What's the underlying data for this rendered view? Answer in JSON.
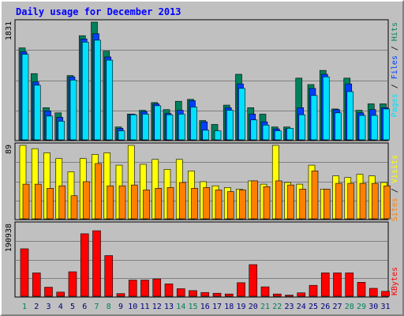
{
  "chart_data": {
    "type": "bar",
    "title": "Daily usage for December 2013",
    "categories": [
      "1",
      "2",
      "3",
      "4",
      "5",
      "6",
      "7",
      "8",
      "9",
      "10",
      "11",
      "12",
      "13",
      "14",
      "15",
      "16",
      "17",
      "18",
      "19",
      "20",
      "21",
      "22",
      "23",
      "24",
      "25",
      "26",
      "27",
      "28",
      "29",
      "30",
      "31"
    ],
    "weekend_days": [
      "1",
      "7",
      "8",
      "14",
      "15",
      "21",
      "22",
      "28",
      "29"
    ],
    "axis_labels": {
      "hits_max": "1831",
      "visits_max": "89",
      "kbytes_max": "190938"
    },
    "legend_right": {
      "top": [
        "Pages",
        " / ",
        "Files",
        " / ",
        "Hits"
      ],
      "middle": [
        "Sites",
        " / ",
        "Visits"
      ],
      "bottom": [
        "KBytes"
      ]
    },
    "colors": {
      "hits": "#00805c",
      "files": "#0040ff",
      "pages": "#00e0ff",
      "visits": "#ffff00",
      "sites": "#ff8000",
      "kbytes": "#ff0000",
      "title": "#0000ff",
      "weekend": "#00805c",
      "weekday": "#000080",
      "background": "#c0c0c0"
    },
    "hits_ylim": [
      0,
      1831
    ],
    "visits_ylim": [
      0,
      89
    ],
    "kbytes_ylim": [
      0,
      190938
    ],
    "series": [
      {
        "name": "Hits",
        "values": [
          1430,
          1030,
          500,
          420,
          1000,
          1620,
          1831,
          1380,
          200,
          400,
          460,
          580,
          470,
          600,
          630,
          300,
          240,
          540,
          1020,
          500,
          400,
          200,
          200,
          960,
          860,
          1080,
          480,
          960,
          460,
          560,
          560
        ]
      },
      {
        "name": "Files",
        "values": [
          1370,
          900,
          450,
          350,
          980,
          1570,
          1650,
          1290,
          180,
          400,
          440,
          560,
          410,
          460,
          610,
          280,
          0,
          500,
          870,
          400,
          280,
          170,
          170,
          500,
          800,
          1020,
          470,
          870,
          420,
          470,
          500
        ]
      },
      {
        "name": "Pages",
        "values": [
          1330,
          850,
          370,
          290,
          930,
          1520,
          1550,
          1240,
          140,
          390,
          400,
          530,
          390,
          400,
          510,
          150,
          140,
          460,
          800,
          310,
          230,
          140,
          180,
          390,
          690,
          980,
          420,
          750,
          380,
          380,
          480
        ]
      },
      {
        "name": "Visits",
        "values": [
          89,
          85,
          80,
          73,
          57,
          73,
          78,
          80,
          65,
          89,
          66,
          72,
          60,
          72,
          58,
          45,
          40,
          38,
          36,
          46,
          42,
          89,
          44,
          42,
          65,
          36,
          52,
          50,
          54,
          52,
          44
        ]
      },
      {
        "name": "Sites",
        "values": [
          42,
          42,
          37,
          40,
          28,
          45,
          67,
          40,
          40,
          41,
          35,
          37,
          38,
          44,
          37,
          38,
          35,
          33,
          35,
          46,
          39,
          46,
          41,
          36,
          58,
          36,
          43,
          43,
          43,
          43,
          40
        ]
      },
      {
        "name": "KBytes",
        "values": [
          126000,
          62000,
          24000,
          11000,
          65000,
          166000,
          174000,
          108000,
          7000,
          43000,
          43000,
          46000,
          33000,
          20000,
          15000,
          10000,
          8000,
          6000,
          36000,
          84000,
          25000,
          6000,
          3000,
          9000,
          29000,
          62000,
          62000,
          62000,
          37000,
          21000,
          13000
        ]
      }
    ]
  }
}
